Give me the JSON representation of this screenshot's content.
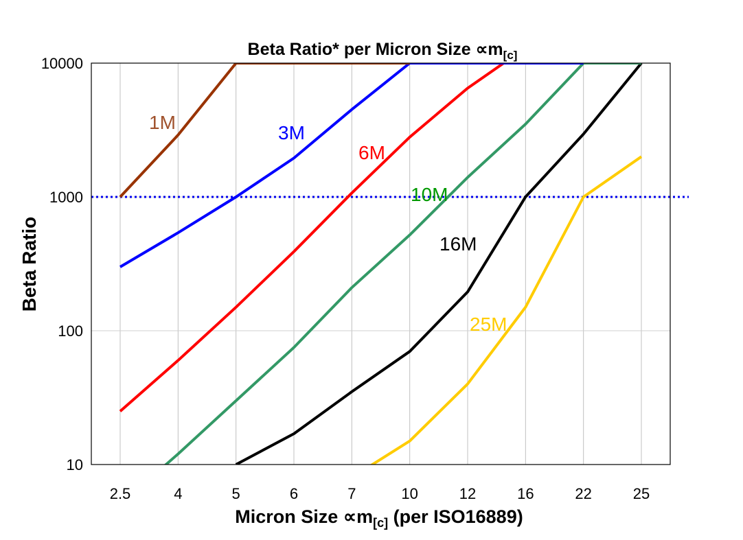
{
  "chart_data": {
    "type": "line",
    "title": "Beta Ratio* per Micron Size ∝m",
    "title_subscript": "[c]",
    "xlabel": "Micron Size ∝m",
    "xlabel_subscript": "[c]",
    "xlabel_suffix": " (per ISO16889)",
    "ylabel": "Beta Ratio",
    "y_scale": "log",
    "ylim": [
      10,
      10000
    ],
    "y_ticks": [
      "10",
      "100",
      "1000",
      "10000"
    ],
    "grid": "vertical",
    "categories": [
      "2.5",
      "4",
      "5",
      "6",
      "7",
      "10",
      "12",
      "16",
      "22",
      "25"
    ],
    "reference_line": {
      "value": 1000,
      "style": "dotted",
      "color": "#0000ee"
    },
    "series": [
      {
        "name": "1M",
        "color": "#993300",
        "label_color": "#a0522d",
        "values": [
          1000,
          2900,
          10000,
          10000,
          10000,
          10000,
          null,
          null,
          null,
          null
        ]
      },
      {
        "name": "3M",
        "color": "#0000ff",
        "label_color": "#0000ff",
        "values": [
          300,
          540,
          1000,
          1950,
          4500,
          10000,
          10000,
          10000,
          10000,
          null
        ]
      },
      {
        "name": "6M",
        "color": "#ff0000",
        "label_color": "#ff0000",
        "values": [
          25,
          60,
          150,
          390,
          1070,
          2800,
          6500,
          13000,
          null,
          null
        ]
      },
      {
        "name": "10M",
        "color": "#339966",
        "label_color": "#009900",
        "values": [
          5,
          12,
          30,
          75,
          210,
          520,
          1400,
          3500,
          10000,
          10000
        ]
      },
      {
        "name": "16M",
        "color": "#000000",
        "label_color": "#000000",
        "values": [
          null,
          null,
          10,
          17,
          35,
          70,
          195,
          1000,
          2950,
          10000
        ]
      },
      {
        "name": "25M",
        "color": "#ffcc00",
        "label_color": "#ffcc00",
        "values": [
          null,
          null,
          null,
          null,
          8,
          15,
          40,
          150,
          1000,
          2000
        ]
      }
    ]
  }
}
